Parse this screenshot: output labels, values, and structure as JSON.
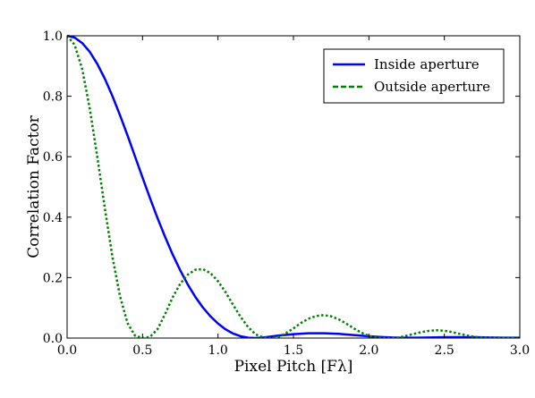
{
  "chart_data": {
    "type": "line",
    "xlabel": "Pixel Pitch [Fλ]",
    "ylabel": "Correlation Factor",
    "xlim": [
      0.0,
      3.0
    ],
    "ylim": [
      0.0,
      1.0
    ],
    "xticks": [
      0.0,
      0.5,
      1.0,
      1.5,
      2.0,
      2.5,
      3.0
    ],
    "xtick_labels": [
      "0.0",
      "0.5",
      "1.0",
      "1.5",
      "2.0",
      "2.5",
      "3.0"
    ],
    "yticks": [
      0.0,
      0.2,
      0.4,
      0.6,
      0.8,
      1.0
    ],
    "ytick_labels": [
      "0.0",
      "0.2",
      "0.4",
      "0.6",
      "0.8",
      "1.0"
    ],
    "grid": false,
    "legend_position": "top-right",
    "series": [
      {
        "name": "Inside aperture",
        "color": "#0000ff",
        "style": "solid",
        "x": [
          0.0,
          0.05,
          0.1,
          0.15,
          0.2,
          0.25,
          0.3,
          0.35,
          0.4,
          0.45,
          0.5,
          0.55,
          0.6,
          0.65,
          0.7,
          0.75,
          0.8,
          0.85,
          0.9,
          0.95,
          1.0,
          1.05,
          1.1,
          1.15,
          1.2,
          1.25,
          1.3,
          1.4,
          1.5,
          1.6,
          1.7,
          1.8,
          1.9,
          2.0,
          2.1,
          2.2,
          2.3,
          2.4,
          2.5,
          2.6,
          2.7,
          2.8,
          2.9,
          3.0
        ],
        "y": [
          1.0,
          0.994,
          0.976,
          0.947,
          0.907,
          0.858,
          0.801,
          0.738,
          0.671,
          0.601,
          0.531,
          0.462,
          0.396,
          0.334,
          0.276,
          0.224,
          0.177,
          0.136,
          0.101,
          0.072,
          0.048,
          0.029,
          0.015,
          0.006,
          0.001,
          0.0,
          0.002,
          0.008,
          0.013,
          0.016,
          0.016,
          0.014,
          0.01,
          0.006,
          0.003,
          0.001,
          0.001,
          0.002,
          0.003,
          0.003,
          0.003,
          0.002,
          0.001,
          0.001
        ]
      },
      {
        "name": "Outside aperture",
        "color": "#008000",
        "style": "dotted",
        "x": [
          0.0,
          0.05,
          0.1,
          0.15,
          0.2,
          0.25,
          0.3,
          0.35,
          0.4,
          0.45,
          0.5,
          0.55,
          0.6,
          0.65,
          0.7,
          0.75,
          0.8,
          0.85,
          0.9,
          0.95,
          1.0,
          1.05,
          1.1,
          1.15,
          1.2,
          1.25,
          1.3,
          1.35,
          1.4,
          1.45,
          1.5,
          1.55,
          1.6,
          1.65,
          1.7,
          1.75,
          1.8,
          1.85,
          1.9,
          1.95,
          2.0,
          2.05,
          2.1,
          2.15,
          2.2,
          2.25,
          2.3,
          2.35,
          2.4,
          2.45,
          2.5,
          2.55,
          2.6,
          2.65,
          2.7,
          2.75,
          2.8,
          2.85,
          2.9,
          2.95,
          3.0
        ],
        "y": [
          1.0,
          0.97,
          0.89,
          0.76,
          0.6,
          0.43,
          0.27,
          0.14,
          0.05,
          0.008,
          0.0,
          0.004,
          0.03,
          0.08,
          0.135,
          0.18,
          0.21,
          0.226,
          0.228,
          0.215,
          0.188,
          0.152,
          0.11,
          0.07,
          0.036,
          0.012,
          0.002,
          0.0,
          0.004,
          0.016,
          0.032,
          0.05,
          0.064,
          0.073,
          0.076,
          0.072,
          0.062,
          0.048,
          0.032,
          0.018,
          0.007,
          0.002,
          0.0,
          0.0,
          0.002,
          0.008,
          0.014,
          0.02,
          0.024,
          0.026,
          0.024,
          0.02,
          0.014,
          0.009,
          0.004,
          0.002,
          0.001,
          0.001,
          0.001,
          0.001,
          0.001
        ]
      }
    ]
  }
}
